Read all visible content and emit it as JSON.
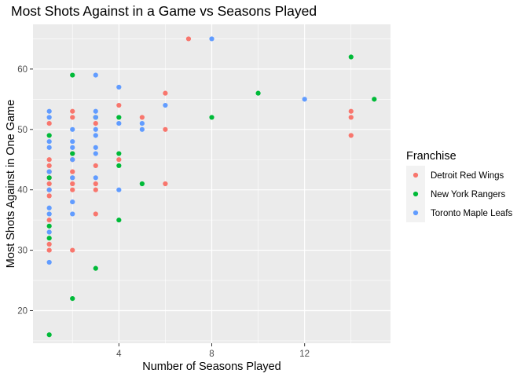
{
  "chart_data": {
    "type": "scatter",
    "title": "Most Shots Against in a Game vs Seasons Played",
    "xlabel": "Number of Seasons Played",
    "ylabel": "Most Shots Against in One Game",
    "xlim": [
      0.3,
      15.7
    ],
    "ylim": [
      14.6,
      67.4
    ],
    "x_ticks": [
      4,
      8,
      12
    ],
    "x_minor_ticks": [
      2,
      6,
      10,
      14
    ],
    "y_ticks": [
      20,
      30,
      40,
      50,
      60
    ],
    "y_minor_ticks": [
      15,
      25,
      35,
      45,
      55,
      65
    ],
    "grid": true,
    "legend": {
      "title": "Franchise",
      "position": "right"
    },
    "series": [
      {
        "name": "Detroit Red Wings",
        "color": "#F8766D",
        "points": [
          [
            1,
            51
          ],
          [
            1,
            45
          ],
          [
            1,
            44
          ],
          [
            1,
            43
          ],
          [
            1,
            42
          ],
          [
            1,
            41
          ],
          [
            1,
            40
          ],
          [
            1,
            39
          ],
          [
            1,
            35
          ],
          [
            1,
            31
          ],
          [
            1,
            30
          ],
          [
            2,
            53
          ],
          [
            2,
            52
          ],
          [
            2,
            46
          ],
          [
            2,
            45
          ],
          [
            2,
            43
          ],
          [
            2,
            42
          ],
          [
            2,
            41
          ],
          [
            2,
            40
          ],
          [
            2,
            30
          ],
          [
            3,
            52
          ],
          [
            3,
            51
          ],
          [
            3,
            44
          ],
          [
            3,
            41
          ],
          [
            3,
            40
          ],
          [
            3,
            36
          ],
          [
            4,
            54
          ],
          [
            4,
            45
          ],
          [
            5,
            52
          ],
          [
            6,
            56
          ],
          [
            6,
            50
          ],
          [
            6,
            41
          ],
          [
            7,
            65
          ],
          [
            14,
            53
          ],
          [
            14,
            52
          ],
          [
            14,
            49
          ]
        ]
      },
      {
        "name": "New York Rangers",
        "color": "#00BA38",
        "points": [
          [
            1,
            49
          ],
          [
            1,
            42
          ],
          [
            1,
            34
          ],
          [
            1,
            32
          ],
          [
            1,
            16
          ],
          [
            2,
            59
          ],
          [
            2,
            46
          ],
          [
            2,
            22
          ],
          [
            3,
            52
          ],
          [
            3,
            27
          ],
          [
            4,
            52
          ],
          [
            4,
            46
          ],
          [
            4,
            44
          ],
          [
            4,
            35
          ],
          [
            5,
            41
          ],
          [
            8,
            52
          ],
          [
            10,
            56
          ],
          [
            14,
            62
          ],
          [
            15,
            55
          ]
        ]
      },
      {
        "name": "Toronto Maple Leafs",
        "color": "#619CFF",
        "points": [
          [
            1,
            53
          ],
          [
            1,
            52
          ],
          [
            1,
            48
          ],
          [
            1,
            47
          ],
          [
            1,
            43
          ],
          [
            1,
            40
          ],
          [
            1,
            37
          ],
          [
            1,
            36
          ],
          [
            1,
            33
          ],
          [
            1,
            28
          ],
          [
            2,
            50
          ],
          [
            2,
            48
          ],
          [
            2,
            47
          ],
          [
            2,
            45
          ],
          [
            2,
            42
          ],
          [
            2,
            38
          ],
          [
            2,
            36
          ],
          [
            3,
            59
          ],
          [
            3,
            53
          ],
          [
            3,
            52
          ],
          [
            3,
            50
          ],
          [
            3,
            49
          ],
          [
            3,
            47
          ],
          [
            3,
            46
          ],
          [
            3,
            42
          ],
          [
            4,
            57
          ],
          [
            4,
            51
          ],
          [
            4,
            40
          ],
          [
            5,
            51
          ],
          [
            5,
            50
          ],
          [
            6,
            54
          ],
          [
            8,
            65
          ],
          [
            12,
            55
          ]
        ]
      }
    ]
  }
}
